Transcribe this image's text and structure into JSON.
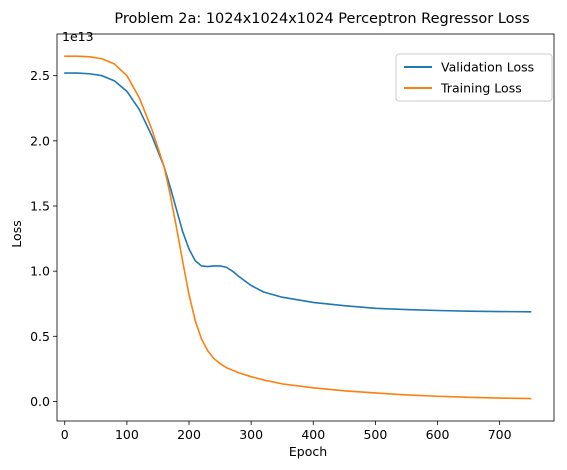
{
  "chart_data": {
    "type": "line",
    "title": "Problem 2a: 1024x1024x1024 Perceptron Regressor Loss",
    "xlabel": "Epoch",
    "ylabel": "Loss",
    "y_offset_label": "1e13",
    "y_scale": 10000000000000.0,
    "xlim": [
      -12.5,
      787.5
    ],
    "ylim": [
      -0.15,
      2.82
    ],
    "xticks": [
      0,
      100,
      200,
      300,
      400,
      500,
      600,
      700
    ],
    "yticks": [
      0.0,
      0.5,
      1.0,
      1.5,
      2.0,
      2.5
    ],
    "ytick_labels": [
      "0.0",
      "0.5",
      "1.0",
      "1.5",
      "2.0",
      "2.5"
    ],
    "grid": false,
    "legend_position": "top-right",
    "series": [
      {
        "name": "Validation Loss",
        "color": "#1f77b4",
        "x": [
          0,
          20,
          40,
          60,
          80,
          100,
          120,
          140,
          160,
          170,
          180,
          190,
          200,
          210,
          220,
          230,
          240,
          250,
          260,
          270,
          280,
          300,
          320,
          350,
          400,
          450,
          500,
          550,
          600,
          650,
          700,
          750
        ],
        "y": [
          2.52,
          2.52,
          2.515,
          2.5,
          2.46,
          2.38,
          2.24,
          2.04,
          1.8,
          1.64,
          1.47,
          1.3,
          1.17,
          1.08,
          1.04,
          1.035,
          1.04,
          1.04,
          1.03,
          1.0,
          0.96,
          0.89,
          0.84,
          0.8,
          0.76,
          0.735,
          0.715,
          0.705,
          0.698,
          0.693,
          0.69,
          0.688
        ]
      },
      {
        "name": "Training Loss",
        "color": "#ff7f0e",
        "x": [
          0,
          20,
          40,
          60,
          80,
          100,
          120,
          140,
          160,
          170,
          180,
          190,
          200,
          210,
          220,
          230,
          240,
          250,
          260,
          270,
          280,
          300,
          320,
          350,
          400,
          450,
          500,
          550,
          600,
          650,
          700,
          750
        ],
        "y": [
          2.65,
          2.65,
          2.645,
          2.63,
          2.59,
          2.5,
          2.33,
          2.09,
          1.8,
          1.58,
          1.33,
          1.07,
          0.82,
          0.62,
          0.48,
          0.39,
          0.33,
          0.29,
          0.26,
          0.24,
          0.22,
          0.19,
          0.165,
          0.135,
          0.105,
          0.082,
          0.065,
          0.05,
          0.04,
          0.032,
          0.026,
          0.022
        ]
      }
    ]
  }
}
